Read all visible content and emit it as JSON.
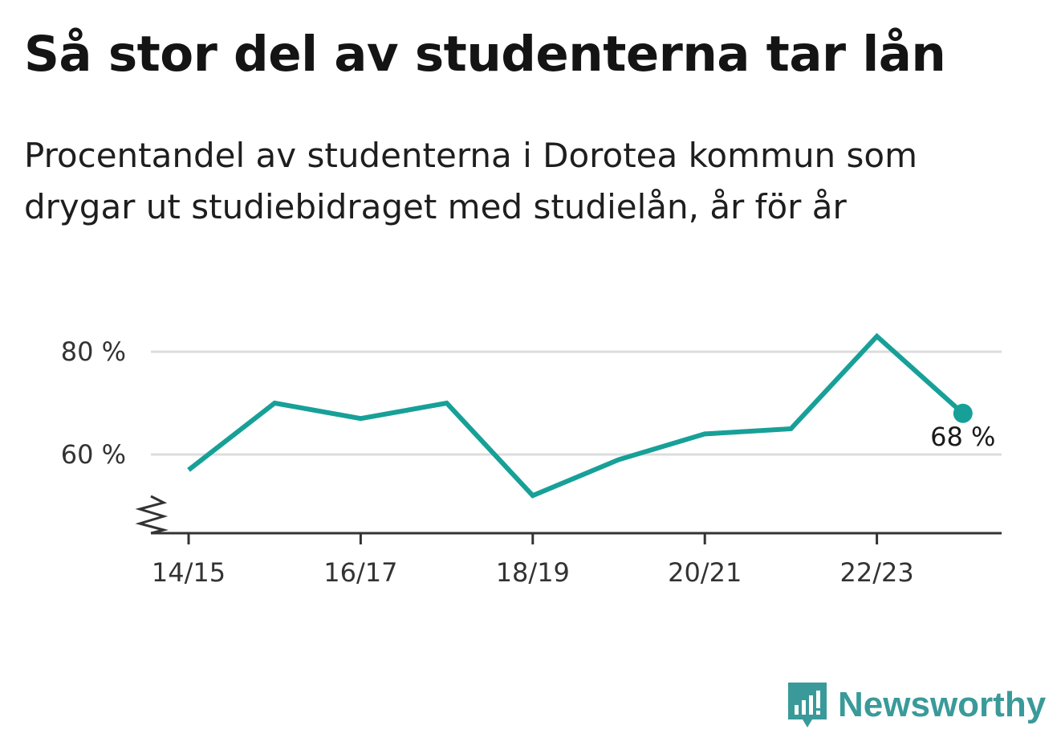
{
  "title": "Så stor del av studenterna tar lån",
  "subtitle_line1": "Procentandel av studenterna i Dorotea kommun som",
  "subtitle_line2": "drygar ut studiebidraget med studielån, år för år",
  "brand": {
    "name": "Newsworthy",
    "logo_icon": "bar-chart-speech-bubble-icon",
    "color": "#3a9a9a"
  },
  "chart_data": {
    "type": "line",
    "x": [
      "14/15",
      "15/16",
      "16/17",
      "17/18",
      "18/19",
      "19/20",
      "20/21",
      "21/22",
      "22/23",
      "23/24"
    ],
    "series": [
      {
        "values": [
          57,
          70,
          67,
          70,
          52,
          59,
          64,
          65,
          83,
          68
        ],
        "color": "#17a098"
      }
    ],
    "x_tick_labels": [
      "14/15",
      "16/17",
      "18/19",
      "20/21",
      "22/23"
    ],
    "y_ticks": [
      {
        "value": 60,
        "label": "60 %"
      },
      {
        "value": 80,
        "label": "80 %"
      }
    ],
    "ylim": [
      45,
      88
    ],
    "y_axis_broken": true,
    "grid": true,
    "last_point_label": "68 %"
  }
}
